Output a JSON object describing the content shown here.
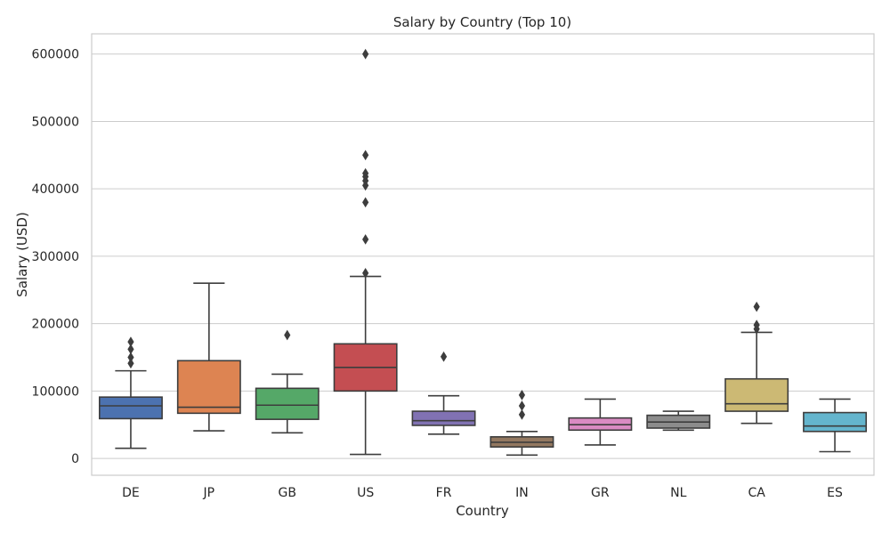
{
  "chart_data": {
    "type": "box",
    "title": "Salary by Country (Top 10)",
    "xlabel": "Country",
    "ylabel": "Salary (USD)",
    "ylim": [
      -25000,
      630000
    ],
    "yticks": [
      0,
      100000,
      200000,
      300000,
      400000,
      500000,
      600000
    ],
    "ytick_labels": [
      "0",
      "100000",
      "200000",
      "300000",
      "400000",
      "500000",
      "600000"
    ],
    "grid": true,
    "categories": [
      "DE",
      "JP",
      "GB",
      "US",
      "FR",
      "IN",
      "GR",
      "NL",
      "CA",
      "ES"
    ],
    "series": [
      {
        "category": "DE",
        "color": "#4c72b0",
        "whisker_low": 15000,
        "q1": 59000,
        "median": 78000,
        "q3": 91000,
        "whisker_high": 130000,
        "outliers": [
          141000,
          150000,
          162000,
          173000
        ]
      },
      {
        "category": "JP",
        "color": "#dd8452",
        "whisker_low": 41000,
        "q1": 67000,
        "median": 76000,
        "q3": 145000,
        "whisker_high": 260000,
        "outliers": []
      },
      {
        "category": "GB",
        "color": "#55a868",
        "whisker_low": 38000,
        "q1": 58000,
        "median": 79000,
        "q3": 104000,
        "whisker_high": 125000,
        "outliers": [
          183000
        ]
      },
      {
        "category": "US",
        "color": "#c44e52",
        "whisker_low": 6000,
        "q1": 100000,
        "median": 135000,
        "q3": 170000,
        "whisker_high": 270000,
        "outliers": [
          275000,
          325000,
          380000,
          405000,
          412000,
          418000,
          423000,
          450000,
          600000
        ]
      },
      {
        "category": "FR",
        "color": "#8172b3",
        "whisker_low": 36000,
        "q1": 49000,
        "median": 56000,
        "q3": 70000,
        "whisker_high": 93000,
        "outliers": [
          151000
        ]
      },
      {
        "category": "IN",
        "color": "#937860",
        "whisker_low": 5000,
        "q1": 17000,
        "median": 24000,
        "q3": 32000,
        "whisker_high": 40000,
        "outliers": [
          65000,
          78000,
          94000
        ]
      },
      {
        "category": "GR",
        "color": "#da8bc3",
        "whisker_low": 20000,
        "q1": 42000,
        "median": 50000,
        "q3": 60000,
        "whisker_high": 88000,
        "outliers": []
      },
      {
        "category": "NL",
        "color": "#8c8c8c",
        "whisker_low": 42000,
        "q1": 45000,
        "median": 54000,
        "q3": 64000,
        "whisker_high": 70000,
        "outliers": []
      },
      {
        "category": "CA",
        "color": "#ccb974",
        "whisker_low": 52000,
        "q1": 70000,
        "median": 81000,
        "q3": 118000,
        "whisker_high": 187000,
        "outliers": [
          192000,
          198000,
          225000
        ]
      },
      {
        "category": "ES",
        "color": "#64b5cd",
        "whisker_low": 10000,
        "q1": 40000,
        "median": 48000,
        "q3": 68000,
        "whisker_high": 88000,
        "outliers": []
      }
    ]
  }
}
